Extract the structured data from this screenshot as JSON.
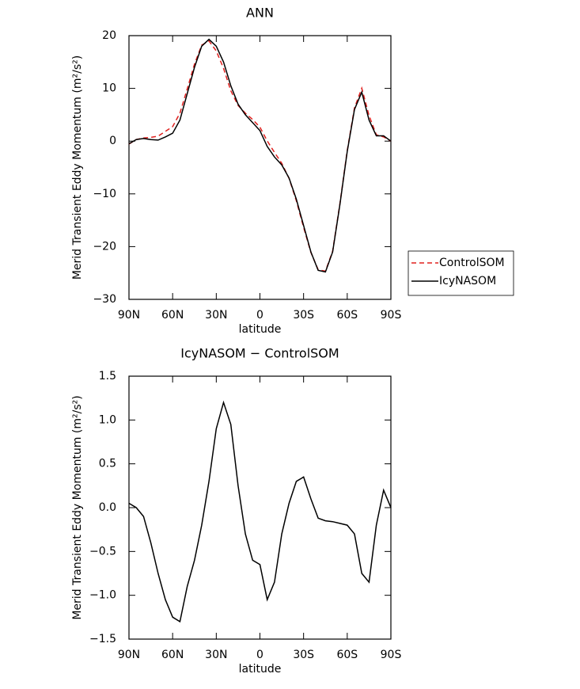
{
  "chart_data": [
    {
      "type": "line",
      "title": "ANN",
      "x_label": "latitude",
      "y_label": "Merid Transient Eddy Momentum (m²/s²)",
      "x": [
        90,
        85,
        80,
        75,
        70,
        65,
        60,
        55,
        50,
        45,
        40,
        35,
        30,
        25,
        20,
        15,
        10,
        5,
        0,
        -5,
        -10,
        -15,
        -20,
        -25,
        -30,
        -35,
        -40,
        -45,
        -50,
        -55,
        -60,
        -65,
        -70,
        -75,
        -80,
        -85,
        -90
      ],
      "series": [
        {
          "name": "ControlSOM",
          "color": "#e0211f",
          "style": "dashed",
          "values": [
            -0.55,
            0.3,
            0.6,
            0.7,
            0.95,
            1.85,
            2.75,
            5.3,
            9.9,
            14.6,
            18.2,
            19.0,
            17.1,
            13.8,
            9.55,
            6.75,
            5.3,
            4.1,
            2.65,
            0.05,
            -2.15,
            -4.2,
            -7.05,
            -11.3,
            -16.35,
            -21.1,
            -24.38,
            -24.65,
            -20.84,
            -11.82,
            -1.8,
            6.3,
            10.05,
            4.85,
            1.2,
            0.8,
            0
          ]
        },
        {
          "name": "IcyNASOM",
          "color": "#000000",
          "style": "solid",
          "values": [
            -0.5,
            0.3,
            0.5,
            0.3,
            0.2,
            0.8,
            1.5,
            4,
            9,
            14,
            18,
            19.3,
            18,
            15,
            10.5,
            7,
            5,
            3.5,
            2,
            -1,
            -3,
            -4.5,
            -7,
            -11,
            -16,
            -21,
            -24.5,
            -24.8,
            -21,
            -12,
            -2,
            6,
            9.3,
            4,
            1,
            1,
            0
          ]
        }
      ],
      "xlim": [
        90,
        -90
      ],
      "xticks": [
        {
          "value": 90,
          "label": "90N"
        },
        {
          "value": 60,
          "label": "60N"
        },
        {
          "value": 30,
          "label": "30N"
        },
        0,
        {
          "value": -30,
          "label": "30S"
        },
        {
          "value": -60,
          "label": "60S"
        },
        {
          "value": -90,
          "label": "90S"
        }
      ],
      "ylim": [
        -30,
        20
      ],
      "yticks": [
        {
          "value": -30,
          "label": "−30"
        },
        {
          "value": -20,
          "label": "−20"
        },
        {
          "value": -10,
          "label": "−10"
        },
        0,
        10,
        20
      ],
      "legend": "right"
    },
    {
      "type": "line",
      "title": "IcyNASOM − ControlSOM",
      "x_label": "latitude",
      "y_label": "Merid Transient Eddy Momentum (m²/s²)",
      "x": [
        90,
        85,
        80,
        75,
        70,
        65,
        60,
        55,
        50,
        45,
        40,
        35,
        30,
        25,
        20,
        15,
        10,
        5,
        0,
        -5,
        -10,
        -15,
        -20,
        -25,
        -30,
        -35,
        -40,
        -45,
        -50,
        -55,
        -60,
        -65,
        -70,
        -75,
        -80,
        -85,
        -90
      ],
      "values": [
        0.05,
        0.0,
        -0.1,
        -0.4,
        -0.75,
        -1.05,
        -1.25,
        -1.3,
        -0.9,
        -0.6,
        -0.2,
        0.3,
        0.9,
        1.2,
        0.95,
        0.25,
        -0.3,
        -0.6,
        -0.65,
        -1.05,
        -0.85,
        -0.3,
        0.05,
        0.3,
        0.35,
        0.1,
        -0.12,
        -0.15,
        -0.16,
        -0.18,
        -0.2,
        -0.3,
        -0.75,
        -0.85,
        -0.2,
        0.2,
        0.0
      ],
      "color": "#000000",
      "xlim": [
        90,
        -90
      ],
      "xticks": [
        {
          "value": 90,
          "label": "90N"
        },
        {
          "value": 60,
          "label": "60N"
        },
        {
          "value": 30,
          "label": "30N"
        },
        0,
        {
          "value": -30,
          "label": "30S"
        },
        {
          "value": -60,
          "label": "60S"
        },
        {
          "value": -90,
          "label": "90S"
        }
      ],
      "ylim": [
        -1.5,
        1.5
      ],
      "yticks": [
        {
          "value": -1.5,
          "label": "−1.5"
        },
        {
          "value": -1,
          "label": "−1.0"
        },
        {
          "value": -0.5,
          "label": "−0.5"
        },
        {
          "value": 0,
          "label": "0.0"
        },
        {
          "value": 0.5,
          "label": "0.5"
        },
        {
          "value": 1,
          "label": "1.0"
        },
        {
          "value": 1.5,
          "label": "1.5"
        }
      ]
    }
  ]
}
